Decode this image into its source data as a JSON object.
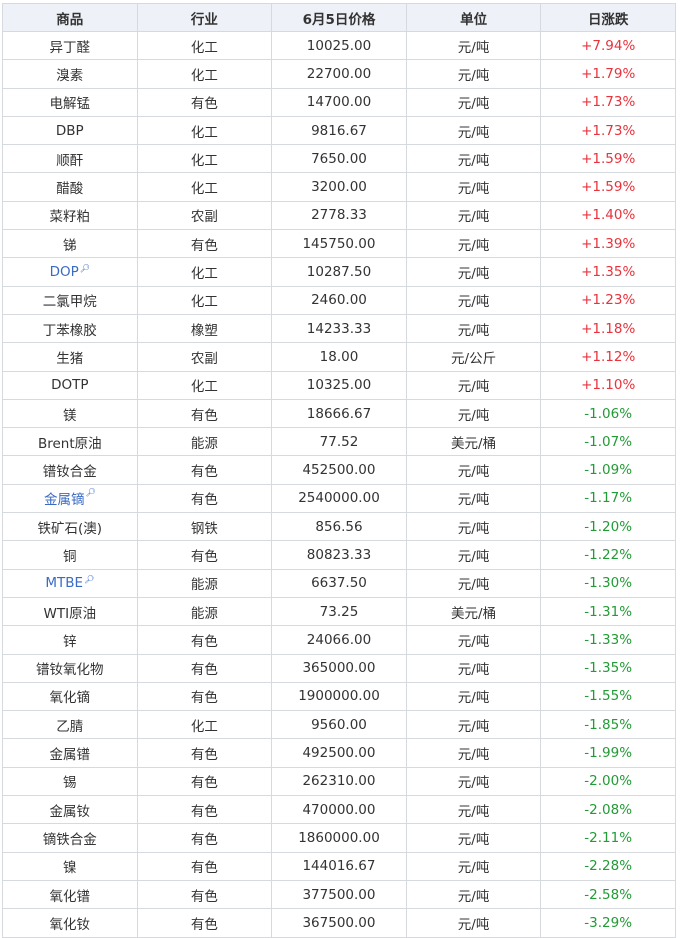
{
  "table": {
    "header": [
      "商品",
      "行业",
      "6月5日价格",
      "单位",
      "日涨跌"
    ],
    "rows": [
      {
        "cells": [
          "异丁醛",
          "化工",
          "10025.00",
          "元/吨",
          "+7.94%"
        ]
      },
      {
        "cells": [
          "溴素",
          "化工",
          "22700.00",
          "元/吨",
          "+1.79%"
        ]
      },
      {
        "cells": [
          "电解锰",
          "有色",
          "14700.00",
          "元/吨",
          "+1.73%"
        ]
      },
      {
        "cells": [
          "DBP",
          "化工",
          "9816.67",
          "元/吨",
          "+1.73%"
        ]
      },
      {
        "cells": [
          "顺酐",
          "化工",
          "7650.00",
          "元/吨",
          "+1.59%"
        ]
      },
      {
        "cells": [
          "醋酸",
          "化工",
          "3200.00",
          "元/吨",
          "+1.59%"
        ]
      },
      {
        "cells": [
          "菜籽粕",
          "农副",
          "2778.33",
          "元/吨",
          "+1.40%"
        ]
      },
      {
        "cells": [
          "锑",
          "有色",
          "145750.00",
          "元/吨",
          "+1.39%"
        ]
      },
      {
        "cells": [
          "DOP",
          "化工",
          "10287.50",
          "元/吨",
          "+1.35%"
        ],
        "link": true
      },
      {
        "cells": [
          "二氯甲烷",
          "化工",
          "2460.00",
          "元/吨",
          "+1.23%"
        ]
      },
      {
        "cells": [
          "丁苯橡胶",
          "橡塑",
          "14233.33",
          "元/吨",
          "+1.18%"
        ]
      },
      {
        "cells": [
          "生猪",
          "农副",
          "18.00",
          "元/公斤",
          "+1.12%"
        ]
      },
      {
        "cells": [
          "DOTP",
          "化工",
          "10325.00",
          "元/吨",
          "+1.10%"
        ]
      },
      {
        "cells": [
          "镁",
          "有色",
          "18666.67",
          "元/吨",
          "-1.06%"
        ]
      },
      {
        "cells": [
          "Brent原油",
          "能源",
          "77.52",
          "美元/桶",
          "-1.07%"
        ]
      },
      {
        "cells": [
          "镨钕合金",
          "有色",
          "452500.00",
          "元/吨",
          "-1.09%"
        ]
      },
      {
        "cells": [
          "金属镝",
          "有色",
          "2540000.00",
          "元/吨",
          "-1.17%"
        ],
        "link": true
      },
      {
        "cells": [
          "铁矿石(澳)",
          "钢铁",
          "856.56",
          "元/吨",
          "-1.20%"
        ]
      },
      {
        "cells": [
          "铜",
          "有色",
          "80823.33",
          "元/吨",
          "-1.22%"
        ]
      },
      {
        "cells": [
          "MTBE",
          "能源",
          "6637.50",
          "元/吨",
          "-1.30%"
        ],
        "link": true
      },
      {
        "cells": [
          "WTI原油",
          "能源",
          "73.25",
          "美元/桶",
          "-1.31%"
        ]
      },
      {
        "cells": [
          "锌",
          "有色",
          "24066.00",
          "元/吨",
          "-1.33%"
        ]
      },
      {
        "cells": [
          "镨钕氧化物",
          "有色",
          "365000.00",
          "元/吨",
          "-1.35%"
        ]
      },
      {
        "cells": [
          "氧化镝",
          "有色",
          "1900000.00",
          "元/吨",
          "-1.55%"
        ]
      },
      {
        "cells": [
          "乙腈",
          "化工",
          "9560.00",
          "元/吨",
          "-1.85%"
        ]
      },
      {
        "cells": [
          "金属镨",
          "有色",
          "492500.00",
          "元/吨",
          "-1.99%"
        ]
      },
      {
        "cells": [
          "锡",
          "有色",
          "262310.00",
          "元/吨",
          "-2.00%"
        ]
      },
      {
        "cells": [
          "金属钕",
          "有色",
          "470000.00",
          "元/吨",
          "-2.08%"
        ]
      },
      {
        "cells": [
          "镝铁合金",
          "有色",
          "1860000.00",
          "元/吨",
          "-2.11%"
        ]
      },
      {
        "cells": [
          "镍",
          "有色",
          "144016.67",
          "元/吨",
          "-2.28%"
        ]
      },
      {
        "cells": [
          "氧化镨",
          "有色",
          "377500.00",
          "元/吨",
          "-2.58%"
        ]
      },
      {
        "cells": [
          "氧化钕",
          "有色",
          "367500.00",
          "元/吨",
          "-3.29%"
        ]
      }
    ]
  }
}
